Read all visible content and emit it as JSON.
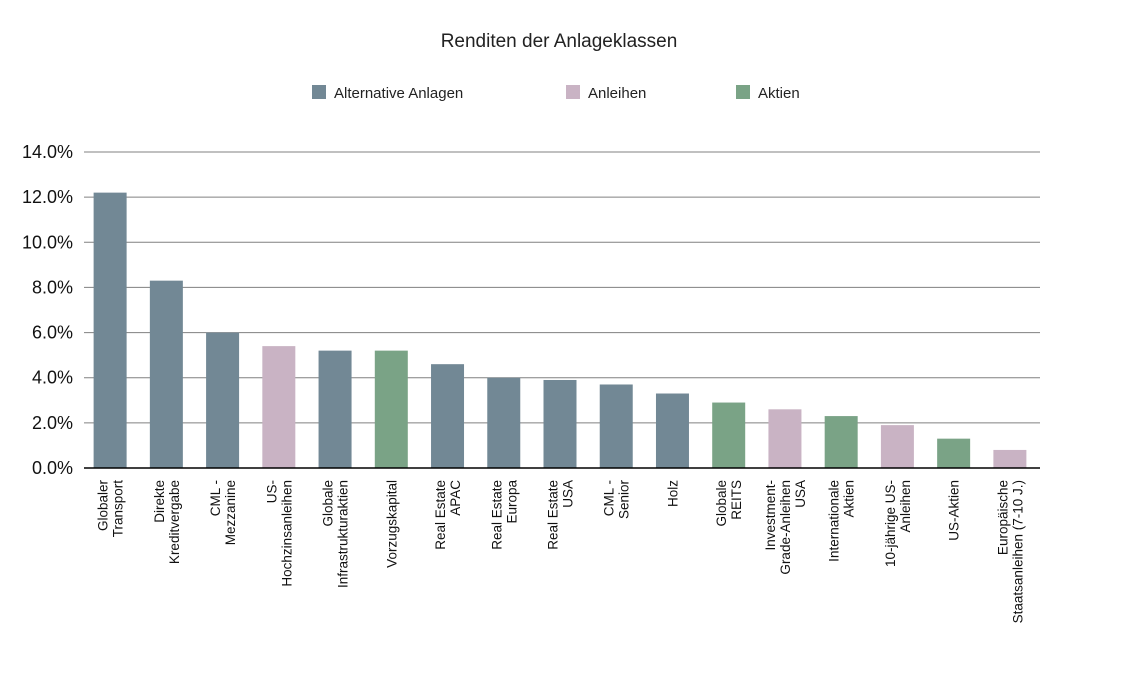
{
  "chart_data": {
    "type": "bar",
    "title": "Renditen der Anlageklassen",
    "xlabel": "",
    "ylabel": "",
    "ylim": [
      0,
      14
    ],
    "yticks": [
      "0.0%",
      "2.0%",
      "4.0%",
      "6.0%",
      "8.0%",
      "10.0%",
      "12.0%",
      "14.0%"
    ],
    "grid": true,
    "legend_placement": "top",
    "legend": [
      {
        "name": "Alternative Anlagen",
        "color": "#728895"
      },
      {
        "name": "Anleihen",
        "color": "#c9b3c4"
      },
      {
        "name": "Aktien",
        "color": "#7aa386"
      }
    ],
    "categories": [
      [
        "Globaler",
        "Transport"
      ],
      [
        "Direkte",
        "Kreditvergabe"
      ],
      [
        "CML -",
        "Mezzanine"
      ],
      [
        "US-",
        "Hochzinsanleihen"
      ],
      [
        "Globale",
        "Infrastrukturaktien"
      ],
      [
        "Vorzugskapital"
      ],
      [
        "Real Estate",
        "APAC"
      ],
      [
        "Real Estate",
        "Europa"
      ],
      [
        "Real Estate",
        "USA"
      ],
      [
        "CML -",
        "Senior"
      ],
      [
        "Holz"
      ],
      [
        "Globale",
        "REITS"
      ],
      [
        "Investment-",
        "Grade-Anleihen",
        "USA"
      ],
      [
        "Internationale",
        "Aktien"
      ],
      [
        "10-jährige US-",
        "Anleihen"
      ],
      [
        "US-Aktien"
      ],
      [
        "Europäische",
        "Staatsanleihen (7-10 J.)"
      ]
    ],
    "values": [
      12.2,
      8.3,
      6.0,
      5.4,
      5.2,
      5.2,
      4.6,
      4.0,
      3.9,
      3.7,
      3.3,
      2.9,
      2.6,
      2.3,
      1.9,
      1.3,
      0.8
    ],
    "groups": [
      0,
      0,
      0,
      1,
      0,
      2,
      0,
      0,
      0,
      0,
      0,
      2,
      1,
      2,
      1,
      2,
      1
    ]
  }
}
